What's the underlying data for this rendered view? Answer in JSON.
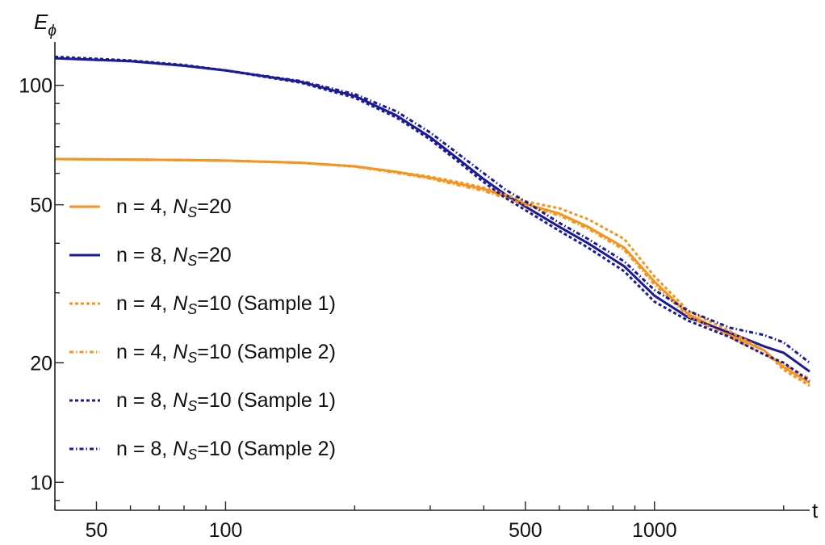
{
  "chart_data": {
    "type": "line",
    "xscale": "log",
    "yscale": "log",
    "xlim": [
      40,
      2300
    ],
    "ylim": [
      8.5,
      125
    ],
    "xlabel": "t",
    "ylabel": {
      "main": "E",
      "sub": "ϕ"
    },
    "xticks": [
      {
        "value": 50,
        "label": "50"
      },
      {
        "value": 100,
        "label": "100"
      },
      {
        "value": 500,
        "label": "500"
      },
      {
        "value": 1000,
        "label": "1000"
      }
    ],
    "yticks": [
      {
        "value": 10,
        "label": "10"
      },
      {
        "value": 20,
        "label": "20"
      },
      {
        "value": 50,
        "label": "50"
      },
      {
        "value": 100,
        "label": "100"
      }
    ],
    "legend_position": "center-left",
    "grid": false,
    "series": [
      {
        "label": {
          "pre": "n = 4, ",
          "main": "N",
          "sub": "S",
          "post": "=20"
        },
        "color": "#f7941d",
        "dash": "solid",
        "points": [
          [
            40,
            65.2
          ],
          [
            60,
            65
          ],
          [
            80,
            64.8
          ],
          [
            100,
            64.6
          ],
          [
            150,
            63.8
          ],
          [
            200,
            62.5
          ],
          [
            250,
            60.5
          ],
          [
            300,
            58.5
          ],
          [
            350,
            56.5
          ],
          [
            400,
            54.8
          ],
          [
            450,
            52.5
          ],
          [
            500,
            50.3
          ],
          [
            600,
            47.5
          ],
          [
            700,
            44
          ],
          [
            850,
            39
          ],
          [
            1000,
            32
          ],
          [
            1200,
            26.5
          ],
          [
            1500,
            23.5
          ],
          [
            1800,
            21.5
          ],
          [
            2000,
            19.5
          ],
          [
            2300,
            17.8
          ]
        ]
      },
      {
        "label": {
          "pre": "n = 8, ",
          "main": "N",
          "sub": "S",
          "post": "=20"
        },
        "color": "#1a1a9a",
        "dash": "solid",
        "points": [
          [
            40,
            117
          ],
          [
            60,
            115
          ],
          [
            80,
            112
          ],
          [
            100,
            109
          ],
          [
            150,
            102
          ],
          [
            200,
            94
          ],
          [
            250,
            84
          ],
          [
            300,
            74
          ],
          [
            350,
            65
          ],
          [
            400,
            58
          ],
          [
            450,
            53
          ],
          [
            500,
            49.5
          ],
          [
            600,
            44
          ],
          [
            700,
            40
          ],
          [
            850,
            35
          ],
          [
            1000,
            29.5
          ],
          [
            1200,
            26
          ],
          [
            1500,
            23.8
          ],
          [
            1800,
            22
          ],
          [
            2000,
            21.2
          ],
          [
            2300,
            19
          ]
        ]
      },
      {
        "label": {
          "pre": "n = 4, ",
          "main": "N",
          "sub": "S",
          "post": "=10 (Sample 1)"
        },
        "color": "#f7941d",
        "dash": "4 3",
        "points": [
          [
            40,
            65.2
          ],
          [
            60,
            65
          ],
          [
            80,
            64.8
          ],
          [
            100,
            64.6
          ],
          [
            150,
            63.8
          ],
          [
            200,
            62.5
          ],
          [
            250,
            60.5
          ],
          [
            300,
            58.8
          ],
          [
            350,
            57
          ],
          [
            400,
            55.2
          ],
          [
            450,
            53
          ],
          [
            500,
            51
          ],
          [
            600,
            49
          ],
          [
            700,
            46
          ],
          [
            850,
            41
          ],
          [
            1000,
            33
          ],
          [
            1200,
            27
          ],
          [
            1500,
            24
          ],
          [
            1800,
            21.5
          ],
          [
            2000,
            19.2
          ],
          [
            2300,
            17.5
          ]
        ]
      },
      {
        "label": {
          "pre": "n = 4, ",
          "main": "N",
          "sub": "S",
          "post": "=10 (Sample 2)"
        },
        "color": "#f7941d",
        "dash": "5 3 1.5 3",
        "points": [
          [
            40,
            65.2
          ],
          [
            60,
            65
          ],
          [
            80,
            64.8
          ],
          [
            100,
            64.6
          ],
          [
            150,
            63.8
          ],
          [
            200,
            62.4
          ],
          [
            250,
            60.2
          ],
          [
            300,
            58.2
          ],
          [
            350,
            56
          ],
          [
            400,
            54.2
          ],
          [
            450,
            52
          ],
          [
            500,
            50
          ],
          [
            600,
            47
          ],
          [
            700,
            43.5
          ],
          [
            850,
            38.5
          ],
          [
            1000,
            31.5
          ],
          [
            1200,
            26.2
          ],
          [
            1500,
            23.2
          ],
          [
            1800,
            21
          ],
          [
            2000,
            19.8
          ],
          [
            2300,
            18.2
          ]
        ]
      },
      {
        "label": {
          "pre": "n = 8, ",
          "main": "N",
          "sub": "S",
          "post": "=10 (Sample 1)"
        },
        "color": "#1a1a9a",
        "dash": "4 3",
        "points": [
          [
            40,
            118
          ],
          [
            60,
            115.5
          ],
          [
            80,
            112.5
          ],
          [
            100,
            109
          ],
          [
            150,
            101.5
          ],
          [
            200,
            93
          ],
          [
            250,
            83
          ],
          [
            300,
            73
          ],
          [
            350,
            64
          ],
          [
            400,
            57
          ],
          [
            450,
            52
          ],
          [
            500,
            48.5
          ],
          [
            600,
            43
          ],
          [
            700,
            39
          ],
          [
            850,
            34
          ],
          [
            1000,
            28.5
          ],
          [
            1200,
            25.5
          ],
          [
            1500,
            23.2
          ],
          [
            1800,
            21
          ],
          [
            2000,
            20
          ],
          [
            2300,
            18
          ]
        ]
      },
      {
        "label": {
          "pre": "n = 8, ",
          "main": "N",
          "sub": "S",
          "post": "=10 (Sample 2)"
        },
        "color": "#1a1a9a",
        "dash": "5 3 1.5 3",
        "points": [
          [
            40,
            117
          ],
          [
            60,
            115
          ],
          [
            80,
            112
          ],
          [
            100,
            109
          ],
          [
            150,
            102.5
          ],
          [
            200,
            95
          ],
          [
            250,
            86
          ],
          [
            300,
            76
          ],
          [
            350,
            67
          ],
          [
            400,
            60
          ],
          [
            450,
            54.5
          ],
          [
            500,
            51
          ],
          [
            600,
            45
          ],
          [
            700,
            41
          ],
          [
            850,
            36
          ],
          [
            1000,
            30.5
          ],
          [
            1200,
            27
          ],
          [
            1500,
            24.5
          ],
          [
            1800,
            23.5
          ],
          [
            2000,
            22.5
          ],
          [
            2300,
            20
          ]
        ]
      }
    ]
  }
}
